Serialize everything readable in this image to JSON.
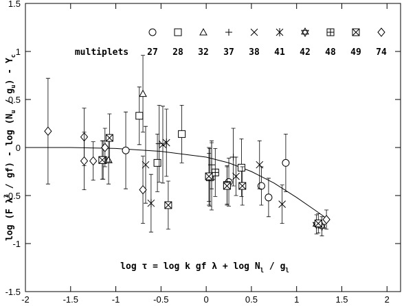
{
  "chart_data": {
    "type": "scatter",
    "ylabel": [
      {
        "text": "log (F λ"
      },
      {
        "text": "3",
        "shift": "sup"
      },
      {
        "text": " / gf) - log (N"
      },
      {
        "text": "u",
        "shift": "sub"
      },
      {
        "text": " / g"
      },
      {
        "text": "u",
        "shift": "sub"
      },
      {
        "text": ") - Y"
      },
      {
        "text": "c",
        "shift": "sub"
      }
    ],
    "annotation": [
      {
        "text": "log τ = log k gf λ + log N"
      },
      {
        "text": "l",
        "shift": "sub"
      },
      {
        "text": " / g"
      },
      {
        "text": "l",
        "shift": "sub"
      }
    ],
    "legend_title": "multiplets",
    "xlim": [
      -2,
      2.15
    ],
    "ylim": [
      -1.5,
      1.5
    ],
    "xticks": [
      -2,
      -1.5,
      -1,
      -0.5,
      0,
      0.5,
      1,
      1.5,
      2
    ],
    "yticks": [
      -1.5,
      -1,
      -0.5,
      0,
      0.5,
      1,
      1.5
    ],
    "color": "#000000",
    "series": [
      {
        "name": "27",
        "marker": "circle",
        "x": [
          -0.89,
          0.25,
          0.61,
          0.69,
          0.88,
          0.03
        ],
        "values": [
          -0.03,
          -0.36,
          -0.4,
          -0.52,
          -0.16,
          -0.31
        ],
        "errors": [
          0.4,
          0.25,
          0.2,
          0.2,
          0.3,
          0.25
        ]
      },
      {
        "name": "28",
        "marker": "square",
        "x": [
          -0.74,
          -0.54,
          -0.27,
          0.39,
          0.06
        ],
        "values": [
          0.33,
          -0.16,
          0.14,
          -0.21,
          -0.3
        ],
        "errors": [
          0.3,
          0.3,
          0.3,
          0.3,
          0.35
        ]
      },
      {
        "name": "32",
        "marker": "triangle",
        "x": [
          -0.7,
          -1.08
        ],
        "values": [
          0.56,
          -0.13
        ],
        "errors": [
          0.4,
          0.25
        ]
      },
      {
        "name": "37",
        "marker": "plus",
        "x": [
          -0.52,
          0.06,
          0.3
        ],
        "values": [
          0.04,
          -0.18,
          -0.1
        ],
        "errors": [
          0.4,
          0.25,
          0.3
        ]
      },
      {
        "name": "38",
        "marker": "cross",
        "x": [
          -0.67,
          -0.48,
          0.33,
          0.59,
          0.84
        ],
        "values": [
          -0.18,
          0.03,
          -0.3,
          -0.18,
          -0.59
        ],
        "errors": [
          0.4,
          0.4,
          0.2,
          0.25,
          0.2
        ]
      },
      {
        "name": "41",
        "marker": "asterisk",
        "x": [
          -0.61,
          -0.44
        ],
        "values": [
          -0.58,
          0.05
        ],
        "errors": [
          0.3,
          0.35
        ]
      },
      {
        "name": "42",
        "marker": "star",
        "x": [
          1.22,
          1.28
        ],
        "values": [
          -0.8,
          -0.82
        ],
        "errors": [
          0.1,
          0.1
        ]
      },
      {
        "name": "48",
        "marker": "boxplus",
        "x": [
          -1.14,
          0.04,
          0.1,
          0.23
        ],
        "values": [
          -0.13,
          -0.31,
          -0.26,
          -0.39
        ],
        "errors": [
          0.2,
          0.3,
          0.25,
          0.2
        ]
      },
      {
        "name": "49",
        "marker": "boxcross",
        "x": [
          -1.07,
          -1.15,
          -0.42,
          0.03,
          0.23,
          0.4,
          1.24
        ],
        "values": [
          0.1,
          -0.13,
          -0.6,
          -0.3,
          -0.4,
          -0.4,
          -0.79
        ],
        "errors": [
          0.25,
          0.2,
          0.25,
          0.3,
          0.2,
          0.2,
          0.1
        ]
      },
      {
        "name": "74",
        "marker": "diamond",
        "x": [
          -1.75,
          -1.35,
          -1.35,
          -1.25,
          -1.12,
          -0.7,
          1.33
        ],
        "values": [
          0.17,
          0.11,
          -0.14,
          -0.14,
          0.0,
          -0.44,
          -0.75
        ],
        "errors": [
          0.55,
          0.3,
          0.3,
          0.2,
          0.2,
          0.35,
          0.1
        ]
      }
    ],
    "curve": {
      "x": [
        -2,
        -1.5,
        -1,
        -0.5,
        0,
        0.25,
        0.5,
        0.75,
        1,
        1.2,
        1.35
      ],
      "values": [
        0,
        0,
        -0.01,
        -0.04,
        -0.1,
        -0.16,
        -0.25,
        -0.37,
        -0.52,
        -0.65,
        -0.75
      ]
    }
  }
}
